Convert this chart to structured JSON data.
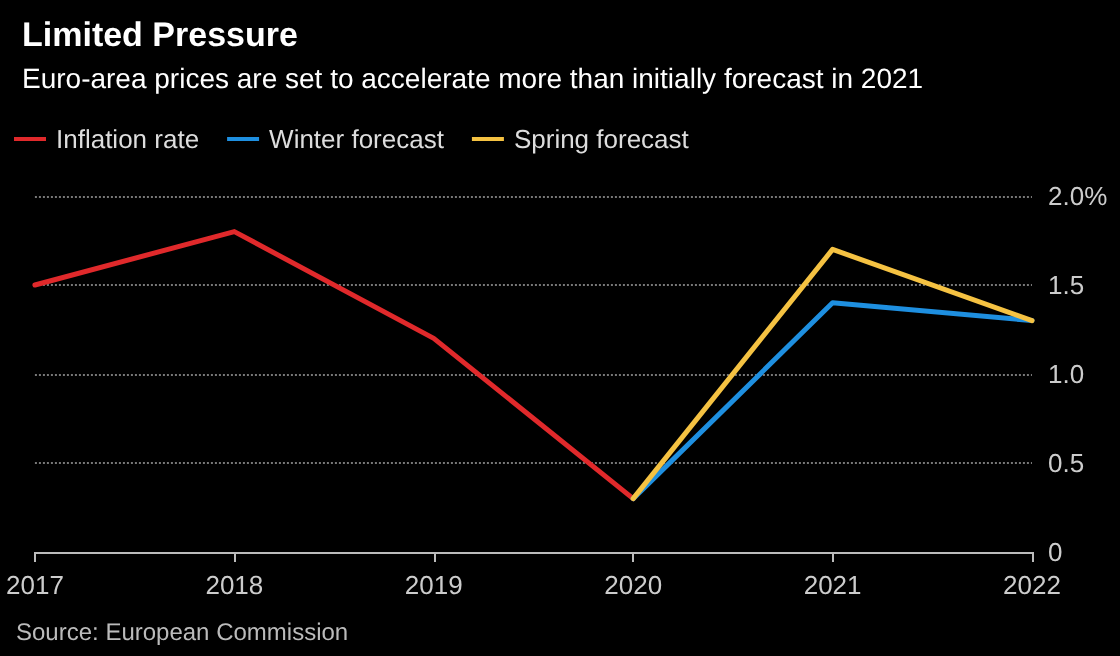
{
  "chart_data": {
    "type": "line",
    "title": "Limited Pressure",
    "subtitle": "Euro-area prices are set to accelerate more than initially forecast in 2021",
    "categories": [
      "2017",
      "2018",
      "2019",
      "2020",
      "2021",
      "2022"
    ],
    "series": [
      {
        "name": "Inflation rate",
        "color": "#e0292b",
        "values": [
          1.5,
          1.8,
          1.2,
          0.3,
          null,
          null
        ]
      },
      {
        "name": "Winter forecast",
        "color": "#1e8fe0",
        "values": [
          null,
          null,
          null,
          0.3,
          1.4,
          1.3
        ]
      },
      {
        "name": "Spring forecast",
        "color": "#f5c242",
        "values": [
          null,
          null,
          null,
          0.3,
          1.7,
          1.3
        ]
      }
    ],
    "ylim": [
      0,
      2.0
    ],
    "yticks": [
      0,
      0.5,
      {
        "value": 1.0,
        "label": "1.0"
      },
      1.5,
      {
        "value": 2.0,
        "label": "2.0%"
      }
    ],
    "grid": "y",
    "legend": "top left",
    "marker": "none",
    "line_style": "solid",
    "annotations": [
      "Source: European Commission"
    ]
  }
}
